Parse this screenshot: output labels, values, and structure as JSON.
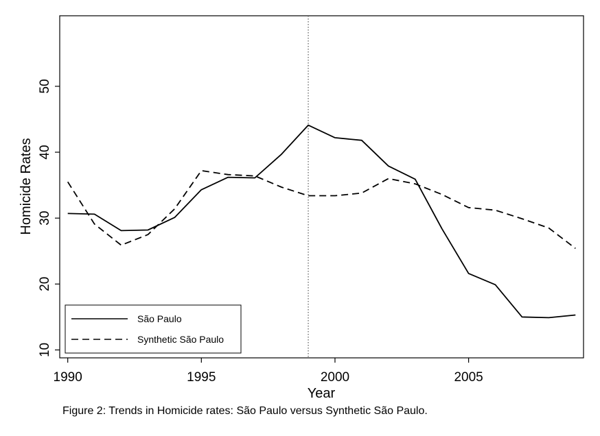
{
  "chart_data": {
    "type": "line",
    "xlabel": "Year",
    "ylabel": "Homicide Rates",
    "xlim": [
      1989.7,
      2009.3
    ],
    "ylim": [
      8.8,
      60.7
    ],
    "x_ticks": [
      1990,
      1995,
      2000,
      2005
    ],
    "y_ticks": [
      10,
      20,
      30,
      40,
      50
    ],
    "vline_x": 1999,
    "grid": false,
    "legend_position": "bottom-left",
    "x": [
      1990,
      1991,
      1992,
      1993,
      1994,
      1995,
      1996,
      1997,
      1998,
      1999,
      2000,
      2001,
      2002,
      2003,
      2004,
      2005,
      2006,
      2007,
      2008,
      2009
    ],
    "series": [
      {
        "name": "São Paulo",
        "style": "solid",
        "values": [
          30.7,
          30.6,
          28.1,
          28.2,
          30.1,
          34.3,
          36.2,
          36.1,
          39.7,
          44.1,
          42.2,
          41.8,
          37.9,
          35.9,
          28.4,
          21.6,
          19.9,
          15.0,
          14.9,
          15.3
        ]
      },
      {
        "name": "Synthetic São Paulo",
        "style": "dashed",
        "values": [
          35.5,
          29.1,
          25.9,
          27.5,
          31.4,
          37.2,
          36.6,
          36.4,
          34.7,
          33.4,
          33.4,
          33.8,
          36.0,
          35.2,
          33.6,
          31.6,
          31.2,
          29.9,
          28.5,
          25.4
        ]
      }
    ]
  },
  "caption": "Figure 2: Trends in Homicide rates: São Paulo versus Synthetic São Paulo."
}
